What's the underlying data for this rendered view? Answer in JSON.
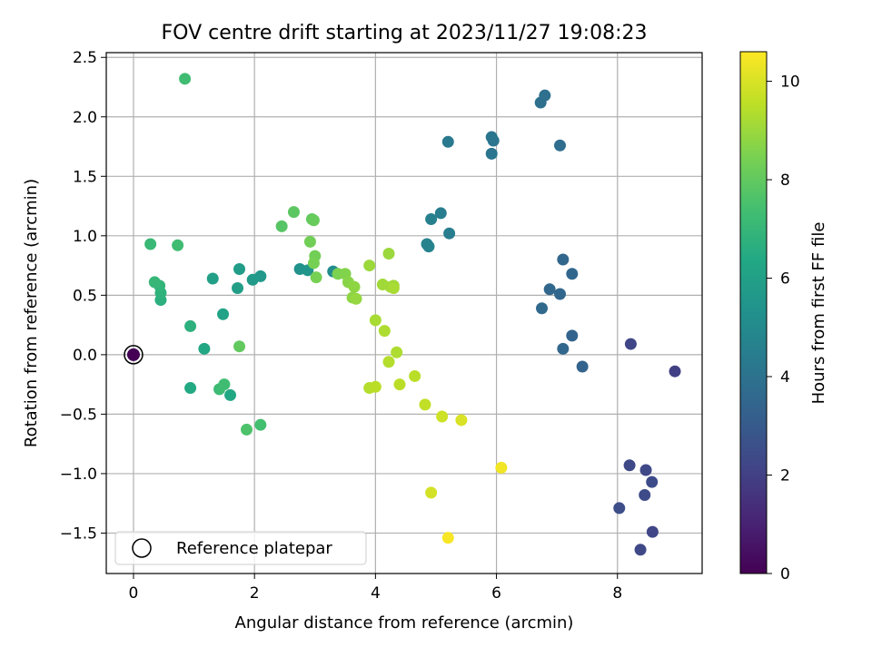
{
  "chart_data": {
    "type": "scatter",
    "title": "FOV centre drift starting at 2023/11/27 19:08:23",
    "xlabel": "Angular distance from reference (arcmin)",
    "ylabel": "Rotation from reference (arcmin)",
    "xlim": [
      -0.45,
      9.4
    ],
    "ylim": [
      -1.84,
      2.54
    ],
    "xticks": [
      0,
      2,
      4,
      6,
      8
    ],
    "xtick_labels": [
      "0",
      "2",
      "4",
      "6",
      "8"
    ],
    "yticks": [
      -1.5,
      -1.0,
      -0.5,
      0.0,
      0.5,
      1.0,
      1.5,
      2.0,
      2.5
    ],
    "ytick_labels": [
      "−1.5",
      "−1.0",
      "−0.5",
      "0.0",
      "0.5",
      "1.0",
      "1.5",
      "2.0",
      "2.5"
    ],
    "grid": true,
    "colormap": "viridis",
    "colorbar": {
      "label": "Hours from first FF file",
      "range": [
        0,
        10.6
      ],
      "ticks": [
        0,
        2,
        4,
        6,
        8,
        10
      ],
      "tick_labels": [
        "0",
        "2",
        "4",
        "6",
        "8",
        "10"
      ]
    },
    "legend": {
      "position": "lower-left",
      "entries": [
        "Reference platepar"
      ]
    },
    "reference_point": {
      "x": 0,
      "y": 0
    },
    "points": [
      {
        "x": 8.95,
        "y": -0.14,
        "c": 2.0
      },
      {
        "x": 8.22,
        "y": 0.09,
        "c": 2.2
      },
      {
        "x": 8.2,
        "y": -0.93,
        "c": 2.3
      },
      {
        "x": 8.47,
        "y": -0.97,
        "c": 2.3
      },
      {
        "x": 8.57,
        "y": -1.07,
        "c": 2.4
      },
      {
        "x": 8.45,
        "y": -1.18,
        "c": 2.4
      },
      {
        "x": 8.03,
        "y": -1.29,
        "c": 2.5
      },
      {
        "x": 8.58,
        "y": -1.49,
        "c": 2.2
      },
      {
        "x": 8.38,
        "y": -1.64,
        "c": 2.3
      },
      {
        "x": 7.42,
        "y": -0.1,
        "c": 3.4
      },
      {
        "x": 7.25,
        "y": 0.16,
        "c": 3.4
      },
      {
        "x": 7.1,
        "y": 0.05,
        "c": 3.5
      },
      {
        "x": 7.1,
        "y": 0.8,
        "c": 3.5
      },
      {
        "x": 7.25,
        "y": 0.68,
        "c": 3.5
      },
      {
        "x": 6.88,
        "y": 0.55,
        "c": 3.5
      },
      {
        "x": 7.05,
        "y": 0.51,
        "c": 3.5
      },
      {
        "x": 6.75,
        "y": 0.39,
        "c": 3.6
      },
      {
        "x": 7.05,
        "y": 1.76,
        "c": 3.8
      },
      {
        "x": 6.8,
        "y": 2.18,
        "c": 3.9
      },
      {
        "x": 6.73,
        "y": 2.12,
        "c": 3.9
      },
      {
        "x": 5.92,
        "y": 1.83,
        "c": 4.1
      },
      {
        "x": 5.95,
        "y": 1.8,
        "c": 4.1
      },
      {
        "x": 5.92,
        "y": 1.69,
        "c": 4.1
      },
      {
        "x": 5.2,
        "y": 1.79,
        "c": 4.3
      },
      {
        "x": 5.08,
        "y": 1.19,
        "c": 4.5
      },
      {
        "x": 4.92,
        "y": 1.14,
        "c": 4.6
      },
      {
        "x": 5.22,
        "y": 1.02,
        "c": 4.5
      },
      {
        "x": 4.85,
        "y": 0.93,
        "c": 4.7
      },
      {
        "x": 4.88,
        "y": 0.91,
        "c": 4.7
      },
      {
        "x": 3.3,
        "y": 0.7,
        "c": 5.1
      },
      {
        "x": 2.75,
        "y": 0.72,
        "c": 5.4
      },
      {
        "x": 2.88,
        "y": 0.71,
        "c": 5.5
      },
      {
        "x": 2.1,
        "y": 0.66,
        "c": 5.6
      },
      {
        "x": 1.97,
        "y": 0.63,
        "c": 5.7
      },
      {
        "x": 1.75,
        "y": 0.72,
        "c": 5.8
      },
      {
        "x": 1.72,
        "y": 0.56,
        "c": 5.9
      },
      {
        "x": 1.31,
        "y": 0.64,
        "c": 6.0
      },
      {
        "x": 1.48,
        "y": 0.34,
        "c": 6.1
      },
      {
        "x": 1.17,
        "y": 0.05,
        "c": 6.3
      },
      {
        "x": 1.6,
        "y": -0.34,
        "c": 6.3
      },
      {
        "x": 0.94,
        "y": -0.28,
        "c": 6.4
      },
      {
        "x": 0.94,
        "y": 0.24,
        "c": 6.7
      },
      {
        "x": 0.45,
        "y": 0.46,
        "c": 6.7
      },
      {
        "x": 0.45,
        "y": 0.52,
        "c": 6.8
      },
      {
        "x": 0.43,
        "y": 0.58,
        "c": 6.9
      },
      {
        "x": 0.35,
        "y": 0.61,
        "c": 7.0
      },
      {
        "x": 0.28,
        "y": 0.93,
        "c": 7.1
      },
      {
        "x": 0.73,
        "y": 0.92,
        "c": 7.3
      },
      {
        "x": 1.42,
        "y": -0.29,
        "c": 7.2
      },
      {
        "x": 1.5,
        "y": -0.25,
        "c": 7.3
      },
      {
        "x": 2.1,
        "y": -0.59,
        "c": 7.4
      },
      {
        "x": 1.87,
        "y": -0.63,
        "c": 7.6
      },
      {
        "x": 0.85,
        "y": 2.32,
        "c": 7.3
      },
      {
        "x": 1.75,
        "y": 0.07,
        "c": 8.0
      },
      {
        "x": 2.45,
        "y": 1.08,
        "c": 7.8
      },
      {
        "x": 2.65,
        "y": 1.2,
        "c": 7.9
      },
      {
        "x": 2.95,
        "y": 1.14,
        "c": 8.0
      },
      {
        "x": 2.98,
        "y": 1.13,
        "c": 8.1
      },
      {
        "x": 2.92,
        "y": 0.95,
        "c": 8.3
      },
      {
        "x": 3.0,
        "y": 0.83,
        "c": 8.3
      },
      {
        "x": 2.98,
        "y": 0.77,
        "c": 8.4
      },
      {
        "x": 3.02,
        "y": 0.65,
        "c": 8.4
      },
      {
        "x": 3.38,
        "y": 0.68,
        "c": 8.5
      },
      {
        "x": 3.5,
        "y": 0.68,
        "c": 8.6
      },
      {
        "x": 3.55,
        "y": 0.61,
        "c": 8.7
      },
      {
        "x": 3.65,
        "y": 0.57,
        "c": 8.8
      },
      {
        "x": 3.62,
        "y": 0.48,
        "c": 8.8
      },
      {
        "x": 3.68,
        "y": 0.47,
        "c": 8.9
      },
      {
        "x": 3.9,
        "y": 0.75,
        "c": 9.0
      },
      {
        "x": 4.22,
        "y": 0.85,
        "c": 9.0
      },
      {
        "x": 4.12,
        "y": 0.59,
        "c": 9.1
      },
      {
        "x": 4.25,
        "y": 0.57,
        "c": 9.1
      },
      {
        "x": 4.3,
        "y": 0.58,
        "c": 9.1
      },
      {
        "x": 4.3,
        "y": 0.56,
        "c": 9.2
      },
      {
        "x": 4.0,
        "y": 0.29,
        "c": 9.2
      },
      {
        "x": 4.15,
        "y": 0.2,
        "c": 9.3
      },
      {
        "x": 4.35,
        "y": 0.02,
        "c": 9.3
      },
      {
        "x": 4.22,
        "y": -0.06,
        "c": 9.4
      },
      {
        "x": 3.9,
        "y": -0.28,
        "c": 9.4
      },
      {
        "x": 4.0,
        "y": -0.27,
        "c": 9.5
      },
      {
        "x": 4.4,
        "y": -0.25,
        "c": 9.5
      },
      {
        "x": 4.65,
        "y": -0.18,
        "c": 9.5
      },
      {
        "x": 4.82,
        "y": -0.42,
        "c": 9.6
      },
      {
        "x": 5.1,
        "y": -0.52,
        "c": 9.8
      },
      {
        "x": 5.42,
        "y": -0.55,
        "c": 10.0
      },
      {
        "x": 4.92,
        "y": -1.16,
        "c": 9.9
      },
      {
        "x": 6.08,
        "y": -0.95,
        "c": 10.4
      },
      {
        "x": 5.2,
        "y": -1.54,
        "c": 10.5
      }
    ]
  }
}
